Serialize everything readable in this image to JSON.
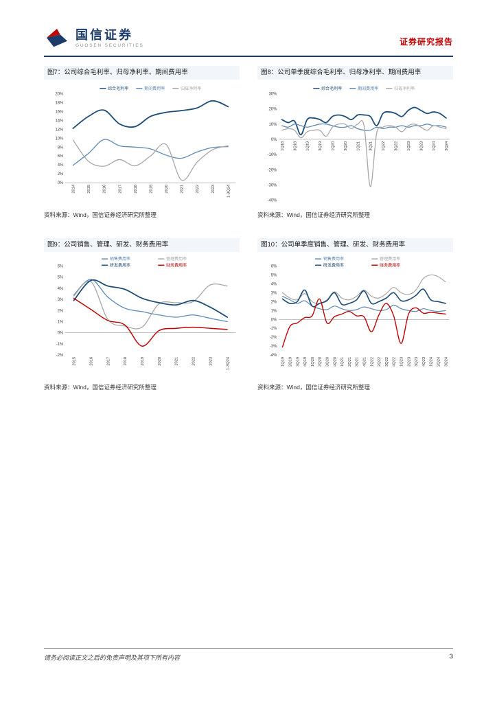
{
  "header": {
    "brand_cn": "国信证券",
    "brand_en": "GUOSEN SECURITIES",
    "report_type": "证券研究报告",
    "brand_navy": "#1B3B6B",
    "brand_red": "#C00000"
  },
  "figures": [
    {
      "title": "图7：公司综合毛利率、归母净利率、期间费用率",
      "source": "资料来源：Wind，国信证券经济研究所整理",
      "chart_data": {
        "type": "line",
        "categories": [
          "2014",
          "2015",
          "2016",
          "2017",
          "2018",
          "2019",
          "2020",
          "2021",
          "2022",
          "2023",
          "1-3Q24"
        ],
        "series": [
          {
            "name": "综合毛利率",
            "color": "#1F4E79",
            "width": 2,
            "values": [
              12.2,
              14.9,
              16.3,
              13.2,
              12.6,
              14.9,
              15.8,
              16.2,
              16.8,
              18.4,
              17.1
            ]
          },
          {
            "name": "期间费用率",
            "color": "#5B87B5",
            "width": 1.4,
            "values": [
              3.9,
              6.6,
              9.7,
              8.3,
              8.0,
              7.6,
              6.2,
              5.5,
              6.9,
              7.9,
              8.1
            ]
          },
          {
            "name": "归母净利率",
            "color": "#A6A6A6",
            "width": 1.4,
            "values": [
              9.6,
              4.8,
              3.7,
              5.2,
              3.8,
              6.0,
              8.6,
              0.6,
              4.6,
              7.4,
              8.3
            ]
          }
        ],
        "ylim": [
          0,
          20
        ],
        "ystep": 2,
        "xtick_every": 1,
        "legend": "row",
        "xlabels_at_zero": false,
        "grid": false,
        "legend_position": "top"
      }
    },
    {
      "title": "图8：公司单季度综合毛利率、归母净利率、期间费用率",
      "source": "资料来源：Wind，国信证券经济研究所整理",
      "chart_data": {
        "type": "line",
        "categories": [
          "1Q18",
          "2Q18",
          "3Q18",
          "4Q18",
          "1Q19",
          "2Q19",
          "3Q19",
          "4Q19",
          "1Q20",
          "2Q20",
          "3Q20",
          "4Q20",
          "1Q21",
          "2Q21",
          "3Q21",
          "4Q21",
          "1Q22",
          "2Q22",
          "3Q22",
          "4Q22",
          "1Q23",
          "2Q23",
          "3Q23",
          "4Q23",
          "1Q24",
          "2Q24",
          "3Q24"
        ],
        "series": [
          {
            "name": "综合毛利率",
            "color": "#1F4E79",
            "width": 2,
            "values": [
              13,
              11,
              12,
              3,
              13,
              14,
              13,
              11,
              15,
              16,
              15,
              13,
              16,
              16,
              15,
              9,
              17,
              18,
              17,
              15,
              19,
              21,
              19,
              17,
              18,
              17,
              14
            ]
          },
          {
            "name": "期间费用率",
            "color": "#5B87B5",
            "width": 1.4,
            "values": [
              9,
              8,
              10,
              9,
              8,
              9,
              10,
              10,
              9,
              8,
              8,
              9,
              7,
              6,
              6,
              8,
              7,
              8,
              8,
              9,
              8,
              9,
              9,
              10,
              9,
              9,
              8
            ]
          },
          {
            "name": "归母净利率",
            "color": "#A6A6A6",
            "width": 1.4,
            "values": [
              6,
              7,
              6,
              1,
              5,
              6,
              6,
              2,
              8,
              10,
              10,
              7,
              10,
              9,
              -31,
              4,
              8,
              9,
              8,
              5,
              9,
              10,
              8,
              6,
              9,
              8,
              7
            ]
          }
        ],
        "ylim": [
          -40,
          30
        ],
        "ystep": 10,
        "xtick_every": 2,
        "legend": "row",
        "xlabels_at_zero": true,
        "grid": false,
        "legend_position": "top"
      }
    },
    {
      "title": "图9：公司销售、管理、研发、财务费用率",
      "source": "资料来源：Wind，国信证券经济研究所整理",
      "chart_data": {
        "type": "line",
        "categories": [
          "2015",
          "2016",
          "2017",
          "2018",
          "2019",
          "2020",
          "2021",
          "2022",
          "2023",
          "1-3Q24"
        ],
        "series": [
          {
            "name": "销售费用率",
            "color": "#5B87B5",
            "width": 1.4,
            "values": [
              3.4,
              4.8,
              3.2,
              2.2,
              1.9,
              1.6,
              1.4,
              1.6,
              1.3,
              1.0
            ]
          },
          {
            "name": "管理费用率",
            "color": "#A6A6A6",
            "width": 1.4,
            "values": [
              3.3,
              4.6,
              1.2,
              0.6,
              0.5,
              2.6,
              2.7,
              2.8,
              4.3,
              4.2
            ]
          },
          {
            "name": "研发费用率",
            "color": "#1F4E79",
            "width": 2,
            "values": [
              2.9,
              4.7,
              4.2,
              3.9,
              3.1,
              2.7,
              2.5,
              2.9,
              2.3,
              1.4
            ]
          },
          {
            "name": "财务费用率",
            "color": "#C00000",
            "width": 1.6,
            "values": [
              3.1,
              2.1,
              1.1,
              0.7,
              -1.2,
              0.2,
              0.4,
              0.5,
              0.4,
              0.3
            ]
          }
        ],
        "ylim": [
          -2,
          6
        ],
        "ystep": 1,
        "xtick_every": 1,
        "legend": "grid",
        "xlabels_at_zero": false,
        "grid": false,
        "legend_position": "top"
      }
    },
    {
      "title": "图10：公司单季度销售、管理、研发、财务费用率",
      "source": "资料来源：Wind，国信证券经济研究所整理",
      "chart_data": {
        "type": "line",
        "categories": [
          "1Q19",
          "2Q19",
          "3Q19",
          "4Q19",
          "1Q20",
          "2Q20",
          "3Q20",
          "4Q20",
          "1Q21",
          "2Q21",
          "3Q21",
          "4Q21",
          "1Q22",
          "2Q22",
          "3Q22",
          "4Q22",
          "1Q23",
          "2Q23",
          "3Q23",
          "4Q23",
          "1Q24",
          "2Q24",
          "3Q24"
        ],
        "series": [
          {
            "name": "销售费用率",
            "color": "#5B87B5",
            "width": 1.3,
            "values": [
              2.6,
              2.2,
              1.8,
              2.1,
              1.5,
              1.2,
              1.1,
              1.5,
              1.2,
              1.0,
              1.1,
              1.4,
              1.2,
              1.0,
              1.1,
              1.6,
              1.2,
              1.0,
              0.9,
              1.2,
              1.0,
              0.9,
              1.0
            ]
          },
          {
            "name": "管理费用率",
            "color": "#A6A6A6",
            "width": 1.3,
            "values": [
              3.0,
              2.4,
              2.2,
              2.9,
              2.0,
              1.8,
              2.2,
              3.1,
              2.4,
              2.2,
              2.6,
              3.3,
              2.6,
              2.4,
              2.9,
              3.6,
              3.0,
              2.8,
              3.3,
              4.6,
              5.0,
              4.8,
              4.2
            ]
          },
          {
            "name": "研发费用率",
            "color": "#1F4E79",
            "width": 1.8,
            "values": [
              2.3,
              1.8,
              2.0,
              3.3,
              1.5,
              1.8,
              2.1,
              3.0,
              1.7,
              1.8,
              2.2,
              3.2,
              1.8,
              2.0,
              2.4,
              3.0,
              2.1,
              2.2,
              2.7,
              3.4,
              2.2,
              2.0,
              1.8
            ]
          },
          {
            "name": "财务费用率",
            "color": "#C00000",
            "width": 1.5,
            "values": [
              -3.1,
              -0.8,
              -0.4,
              0.2,
              0.4,
              2.3,
              -0.4,
              0.3,
              0.6,
              0.9,
              0.4,
              0.3,
              -1.4,
              0.5,
              1.8,
              0.4,
              -2.7,
              0.6,
              1.3,
              0.7,
              0.8,
              0.7,
              0.6
            ]
          }
        ],
        "ylim": [
          -4,
          6
        ],
        "ystep": 1,
        "xtick_every": 1,
        "legend": "grid",
        "xlabels_at_zero": false,
        "grid": false,
        "legend_position": "top"
      }
    }
  ],
  "footer": {
    "disclaimer": "请务必阅读正文之后的免责声明及其项下所有内容",
    "page_number": "3"
  }
}
